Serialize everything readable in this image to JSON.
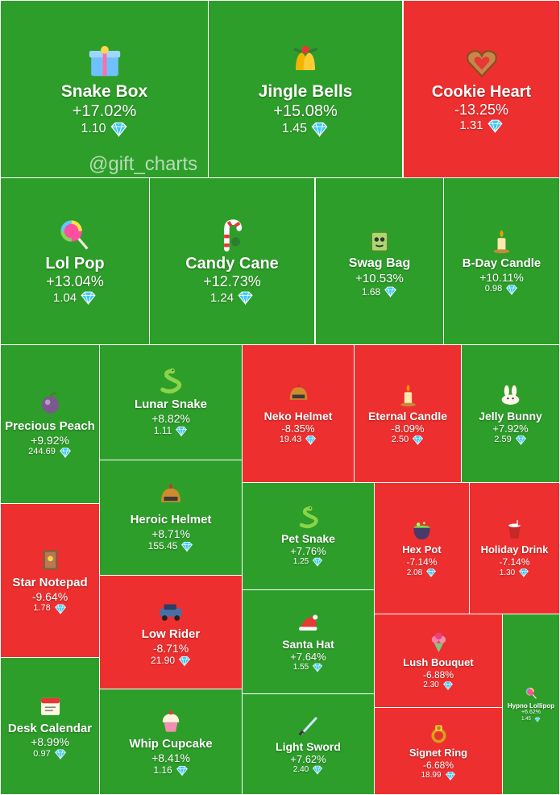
{
  "watermark": "@gift_charts",
  "colors": {
    "gain": "#2e9e2a",
    "loss": "#ee2f2f",
    "text": "#ffffff",
    "diamond": "#3ec7f5"
  },
  "currency_icon": "diamond-icon",
  "tiles": [
    {
      "name": "Snake Box",
      "change": "+17.02%",
      "price": "1.10",
      "trend": "up",
      "icon": "gift-box-icon"
    },
    {
      "name": "Jingle Bells",
      "change": "+15.08%",
      "price": "1.45",
      "trend": "up",
      "icon": "bells-icon"
    },
    {
      "name": "Cookie Heart",
      "change": "-13.25%",
      "price": "1.31",
      "trend": "down",
      "icon": "cookie-heart-icon"
    },
    {
      "name": "Lol Pop",
      "change": "+13.04%",
      "price": "1.04",
      "trend": "up",
      "icon": "lollipop-icon"
    },
    {
      "name": "Candy Cane",
      "change": "+12.73%",
      "price": "1.24",
      "trend": "up",
      "icon": "candy-cane-icon"
    },
    {
      "name": "Swag Bag",
      "change": "+10.53%",
      "price": "1.68",
      "trend": "up",
      "icon": "bag-icon"
    },
    {
      "name": "B-Day Candle",
      "change": "+10.11%",
      "price": "0.98",
      "trend": "up",
      "icon": "candle-icon"
    },
    {
      "name": "Precious Peach",
      "change": "+9.92%",
      "price": "244.69",
      "trend": "up",
      "icon": "peach-icon"
    },
    {
      "name": "Lunar Snake",
      "change": "+8.82%",
      "price": "1.11",
      "trend": "up",
      "icon": "snake-icon"
    },
    {
      "name": "Neko Helmet",
      "change": "-8.35%",
      "price": "19.43",
      "trend": "down",
      "icon": "helmet-icon"
    },
    {
      "name": "Eternal Candle",
      "change": "-8.09%",
      "price": "2.50",
      "trend": "down",
      "icon": "candle-icon"
    },
    {
      "name": "Jelly Bunny",
      "change": "+7.92%",
      "price": "2.59",
      "trend": "up",
      "icon": "bunny-icon"
    },
    {
      "name": "Heroic Helmet",
      "change": "+8.71%",
      "price": "155.45",
      "trend": "up",
      "icon": "helmet-icon"
    },
    {
      "name": "Pet Snake",
      "change": "+7.76%",
      "price": "1.25",
      "trend": "up",
      "icon": "snake-icon"
    },
    {
      "name": "Hex Pot",
      "change": "-7.14%",
      "price": "2.08",
      "trend": "down",
      "icon": "cauldron-icon"
    },
    {
      "name": "Holiday Drink",
      "change": "-7.14%",
      "price": "1.30",
      "trend": "down",
      "icon": "drink-icon"
    },
    {
      "name": "Star Notepad",
      "change": "-9.64%",
      "price": "1.78",
      "trend": "down",
      "icon": "notepad-icon"
    },
    {
      "name": "Low Rider",
      "change": "-8.71%",
      "price": "21.90",
      "trend": "down",
      "icon": "car-icon"
    },
    {
      "name": "Santa Hat",
      "change": "+7.64%",
      "price": "1.55",
      "trend": "up",
      "icon": "santa-hat-icon"
    },
    {
      "name": "Lush Bouquet",
      "change": "-6.88%",
      "price": "2.30",
      "trend": "down",
      "icon": "bouquet-icon"
    },
    {
      "name": "Hypno Lollipop",
      "change": "+6.62%",
      "price": "1.45",
      "trend": "up",
      "icon": "lollipop-icon"
    },
    {
      "name": "Desk Calendar",
      "change": "+8.99%",
      "price": "0.97",
      "trend": "up",
      "icon": "calendar-icon"
    },
    {
      "name": "Whip Cupcake",
      "change": "+8.41%",
      "price": "1.16",
      "trend": "up",
      "icon": "cupcake-icon"
    },
    {
      "name": "Light Sword",
      "change": "+7.62%",
      "price": "2.40",
      "trend": "up",
      "icon": "sword-icon"
    },
    {
      "name": "Signet Ring",
      "change": "-6.68%",
      "price": "18.99",
      "trend": "down",
      "icon": "ring-icon"
    }
  ]
}
